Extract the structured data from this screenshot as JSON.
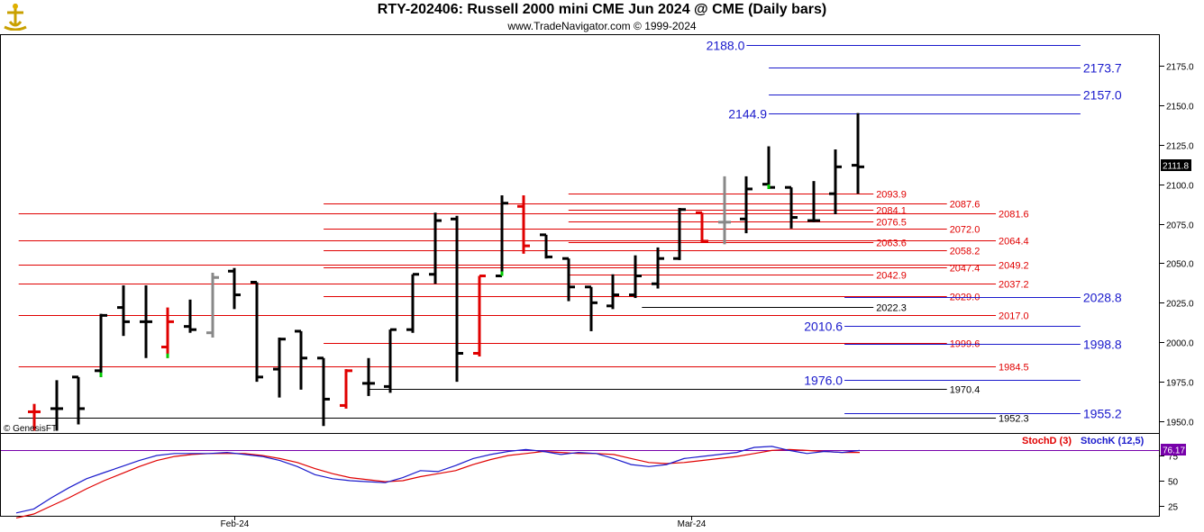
{
  "header": {
    "title": "RTY-202406:  Russell 2000 mini CME Jun 2024 @ CME  (Daily bars)",
    "subtitle": "www.TradeNavigator.com © 1999-2024"
  },
  "watermark": "© GenesisFT",
  "current_price_tag": "2111.8",
  "stoch_tag": "76.17",
  "legend": {
    "stochd": "StochD (3)",
    "stochk": "StochK (12,5)"
  },
  "colors": {
    "red": "#e00000",
    "blue": "#1a1acc",
    "black": "#000000",
    "green": "#00cc00",
    "gray": "#888888",
    "indicator_line": "#7700aa"
  },
  "chart_data": [
    {
      "type": "ohlc",
      "title": "RTY-202406:  Russell 2000 mini CME Jun 2024 @ CME  (Daily bars)",
      "ylim": [
        1942,
        2198
      ],
      "y_ticks": [
        "2175.0",
        "2150.0",
        "2125.0",
        "2100.0",
        "2075.0",
        "2050.0",
        "2025.0",
        "2000.0",
        "1975.0",
        "1950.0"
      ],
      "x_labels": [
        {
          "label": "Feb-24",
          "bar": 9
        },
        {
          "label": "Mar-24",
          "bar": 29.5
        }
      ],
      "bars": [
        {
          "o": 1956,
          "h": 1961,
          "l": 1944,
          "c": 1956,
          "color": "red",
          "green_tick": false
        },
        {
          "o": 1958,
          "h": 1976,
          "l": 1944,
          "c": 1958,
          "color": "black",
          "green_tick": false
        },
        {
          "o": 1978,
          "h": 1978,
          "l": 1948,
          "c": 1958,
          "color": "black",
          "green_tick": false
        },
        {
          "o": 1982,
          "h": 2018,
          "l": 1978,
          "c": 2017,
          "color": "black",
          "green_tick": true
        },
        {
          "o": 2022,
          "h": 2036,
          "l": 2004,
          "c": 2013,
          "color": "black",
          "green_tick": false
        },
        {
          "o": 2013,
          "h": 2036,
          "l": 1990,
          "c": 2013,
          "color": "black",
          "green_tick": false
        },
        {
          "o": 1997,
          "h": 2022,
          "l": 1990,
          "c": 2013,
          "color": "red",
          "green_tick": true
        },
        {
          "o": 2010,
          "h": 2027,
          "l": 2006,
          "c": 2008,
          "color": "black",
          "green_tick": false
        },
        {
          "o": 2006,
          "h": 2044,
          "l": 2003,
          "c": 2041,
          "color": "gray",
          "green_tick": false
        },
        {
          "o": 2045,
          "h": 2047,
          "l": 2021,
          "c": 2030,
          "color": "black",
          "green_tick": false
        },
        {
          "o": 2038,
          "h": 2038,
          "l": 1975,
          "c": 1978,
          "color": "black",
          "green_tick": false
        },
        {
          "o": 1983,
          "h": 2003,
          "l": 1965,
          "c": 2002,
          "color": "black",
          "green_tick": false
        },
        {
          "o": 2007,
          "h": 2007,
          "l": 1970,
          "c": 1990,
          "color": "black",
          "green_tick": false
        },
        {
          "o": 1990,
          "h": 1990,
          "l": 1947,
          "c": 1964,
          "color": "black",
          "green_tick": false
        },
        {
          "o": 1960,
          "h": 1983,
          "l": 1958,
          "c": 1982,
          "color": "red",
          "green_tick": false
        },
        {
          "o": 1974,
          "h": 1990,
          "l": 1966,
          "c": 1974,
          "color": "black",
          "green_tick": false
        },
        {
          "o": 1972,
          "h": 2008,
          "l": 1968,
          "c": 2008,
          "color": "black",
          "green_tick": false
        },
        {
          "o": 2008,
          "h": 2043,
          "l": 2006,
          "c": 2043,
          "color": "black",
          "green_tick": false
        },
        {
          "o": 2043,
          "h": 2082,
          "l": 2037,
          "c": 2077,
          "color": "black",
          "green_tick": false
        },
        {
          "o": 2078,
          "h": 2080,
          "l": 1975,
          "c": 1993,
          "color": "black",
          "green_tick": false
        },
        {
          "o": 1993,
          "h": 2042,
          "l": 1991,
          "c": 2042,
          "color": "red",
          "green_tick": false
        },
        {
          "o": 2042,
          "h": 2093,
          "l": 2042,
          "c": 2088,
          "color": "black",
          "green_tick": true
        },
        {
          "o": 2086,
          "h": 2093,
          "l": 2056,
          "c": 2061,
          "color": "red",
          "green_tick": false
        },
        {
          "o": 2068,
          "h": 2068,
          "l": 2053,
          "c": 2054,
          "color": "black",
          "green_tick": false
        },
        {
          "o": 2053,
          "h": 2053,
          "l": 2026,
          "c": 2035,
          "color": "black",
          "green_tick": false
        },
        {
          "o": 2035,
          "h": 2035,
          "l": 2007,
          "c": 2025,
          "color": "black",
          "green_tick": false
        },
        {
          "o": 2023,
          "h": 2043,
          "l": 2021,
          "c": 2030,
          "color": "black",
          "green_tick": false
        },
        {
          "o": 2030,
          "h": 2055,
          "l": 2028,
          "c": 2042,
          "color": "black",
          "green_tick": false
        },
        {
          "o": 2037,
          "h": 2060,
          "l": 2034,
          "c": 2053,
          "color": "black",
          "green_tick": false
        },
        {
          "o": 2053,
          "h": 2085,
          "l": 2052,
          "c": 2084,
          "color": "black",
          "green_tick": false
        },
        {
          "o": 2082,
          "h": 2082,
          "l": 2063,
          "c": 2064,
          "color": "red",
          "green_tick": false
        },
        {
          "o": 2076,
          "h": 2105,
          "l": 2062,
          "c": 2076,
          "color": "gray",
          "green_tick": false
        },
        {
          "o": 2078,
          "h": 2105,
          "l": 2069,
          "c": 2097,
          "color": "black",
          "green_tick": false
        },
        {
          "o": 2100,
          "h": 2124,
          "l": 2097,
          "c": 2098,
          "color": "black",
          "green_tick": true
        },
        {
          "o": 2098,
          "h": 2098,
          "l": 2072,
          "c": 2079,
          "color": "black",
          "green_tick": false
        },
        {
          "o": 2077,
          "h": 2102,
          "l": 2076,
          "c": 2077,
          "color": "black",
          "green_tick": false
        },
        {
          "o": 2094,
          "h": 2122,
          "l": 2081,
          "c": 2111,
          "color": "black",
          "green_tick": false
        },
        {
          "o": 2112,
          "h": 2145,
          "l": 2094,
          "c": 2111,
          "color": "black",
          "green_tick": false
        }
      ],
      "levels": [
        {
          "value": 2188.0,
          "label": "2188.0",
          "color": "blue",
          "from": 32,
          "to": 47,
          "label_pos": "left",
          "size": "big"
        },
        {
          "value": 2173.7,
          "label": "2173.7",
          "color": "blue",
          "from": 33,
          "to": 47,
          "label_pos": "right",
          "size": "big"
        },
        {
          "value": 2157.0,
          "label": "2157.0",
          "color": "blue",
          "from": 33,
          "to": 47,
          "label_pos": "right",
          "size": "big"
        },
        {
          "value": 2144.9,
          "label": "2144.9",
          "color": "blue",
          "from": 33,
          "to": 47,
          "label_pos": "left",
          "size": "big"
        },
        {
          "value": 2093.9,
          "label": "2093.9",
          "color": "red",
          "from": 24,
          "to": 37.7,
          "label_pos": "right",
          "size": "small"
        },
        {
          "value": 2087.6,
          "label": "2087.6",
          "color": "red",
          "from": 13,
          "to": 41,
          "label_pos": "right",
          "size": "small"
        },
        {
          "value": 2084.1,
          "label": "2084.1",
          "color": "red",
          "from": 24,
          "to": 37.7,
          "label_pos": "right",
          "size": "small"
        },
        {
          "value": 2081.6,
          "label": "2081.6",
          "color": "red",
          "from": -0.7,
          "to": 43.2,
          "label_pos": "right",
          "size": "small"
        },
        {
          "value": 2076.5,
          "label": "2076.5",
          "color": "red",
          "from": 24,
          "to": 37.7,
          "label_pos": "right",
          "size": "small"
        },
        {
          "value": 2072.0,
          "label": "2072.0",
          "color": "red",
          "from": 13,
          "to": 41,
          "label_pos": "right",
          "size": "small"
        },
        {
          "value": 2064.4,
          "label": "2064.4",
          "color": "red",
          "from": -0.7,
          "to": 43.2,
          "label_pos": "right",
          "size": "small"
        },
        {
          "value": 2063.6,
          "label": "2063.6",
          "color": "red",
          "from": 24,
          "to": 37.7,
          "label_pos": "right",
          "size": "small"
        },
        {
          "value": 2058.2,
          "label": "2058.2",
          "color": "red",
          "from": 13,
          "to": 41,
          "label_pos": "right",
          "size": "small"
        },
        {
          "value": 2049.2,
          "label": "2049.2",
          "color": "red",
          "from": -0.7,
          "to": 43.2,
          "label_pos": "right",
          "size": "small"
        },
        {
          "value": 2047.4,
          "label": "2047.4",
          "color": "red",
          "from": 13,
          "to": 41,
          "label_pos": "right",
          "size": "small"
        },
        {
          "value": 2042.9,
          "label": "2042.9",
          "color": "red",
          "from": 24,
          "to": 37.7,
          "label_pos": "right",
          "size": "small"
        },
        {
          "value": 2037.2,
          "label": "2037.2",
          "color": "red",
          "from": -0.7,
          "to": 43.2,
          "label_pos": "right",
          "size": "small"
        },
        {
          "value": 2029.0,
          "label": "2029.0",
          "color": "red",
          "from": 13,
          "to": 41,
          "label_pos": "right",
          "size": "small"
        },
        {
          "value": 2028.8,
          "label": "2028.8",
          "color": "blue",
          "from": 36.4,
          "to": 47,
          "label_pos": "right",
          "size": "big"
        },
        {
          "value": 2022.3,
          "label": "2022.3",
          "color": "black",
          "from": 27.3,
          "to": 37.7,
          "label_pos": "right",
          "size": "small"
        },
        {
          "value": 2017.0,
          "label": "2017.0",
          "color": "red",
          "from": -0.7,
          "to": 43.2,
          "label_pos": "right",
          "size": "small"
        },
        {
          "value": 2010.6,
          "label": "2010.6",
          "color": "blue",
          "from": 36.4,
          "to": 47,
          "label_pos": "left",
          "size": "big"
        },
        {
          "value": 1999.6,
          "label": "1999.6",
          "color": "red",
          "from": 13,
          "to": 41,
          "label_pos": "right",
          "size": "small"
        },
        {
          "value": 1998.8,
          "label": "1998.8",
          "color": "blue",
          "from": 36.4,
          "to": 47,
          "label_pos": "right",
          "size": "big"
        },
        {
          "value": 1984.5,
          "label": "1984.5",
          "color": "red",
          "from": -0.7,
          "to": 43.2,
          "label_pos": "right",
          "size": "small"
        },
        {
          "value": 1976.0,
          "label": "1976.0",
          "color": "blue",
          "from": 36.4,
          "to": 47,
          "label_pos": "left",
          "size": "big"
        },
        {
          "value": 1970.4,
          "label": "1970.4",
          "color": "black",
          "from": 15,
          "to": 41,
          "label_pos": "right",
          "size": "small"
        },
        {
          "value": 1955.2,
          "label": "1955.2",
          "color": "blue",
          "from": 36.4,
          "to": 47,
          "label_pos": "right",
          "size": "big"
        },
        {
          "value": 1952.3,
          "label": "1952.3",
          "color": "black",
          "from": -0.7,
          "to": 43.2,
          "label_pos": "right",
          "size": "small"
        }
      ]
    },
    {
      "type": "line",
      "title": "Stochastic",
      "ylim": [
        15,
        100
      ],
      "y_ticks": [
        "75",
        "50",
        "25"
      ],
      "reference_line": 80,
      "series": [
        {
          "name": "StochK (12,5)",
          "color": "blue",
          "values": [
            18,
            22,
            33,
            43,
            52,
            58,
            64,
            70,
            75,
            77,
            77,
            77,
            78,
            76,
            74,
            70,
            64,
            56,
            52,
            50,
            49,
            48,
            53,
            60,
            59,
            65,
            72,
            76,
            79,
            81,
            79,
            76,
            78,
            77,
            72,
            66,
            64,
            66,
            72,
            74,
            76,
            78,
            83,
            84,
            80,
            77,
            79,
            78,
            80
          ]
        },
        {
          "name": "StochD (3)",
          "color": "red",
          "values": [
            13,
            17,
            25,
            33,
            42,
            50,
            57,
            64,
            70,
            74,
            76,
            77,
            77,
            77,
            75,
            72,
            68,
            62,
            57,
            53,
            51,
            49,
            50,
            54,
            57,
            60,
            66,
            71,
            75,
            77,
            79,
            78,
            77,
            77,
            76,
            72,
            68,
            67,
            68,
            70,
            72,
            74,
            77,
            80,
            81,
            80,
            79,
            78,
            78
          ]
        }
      ]
    }
  ]
}
